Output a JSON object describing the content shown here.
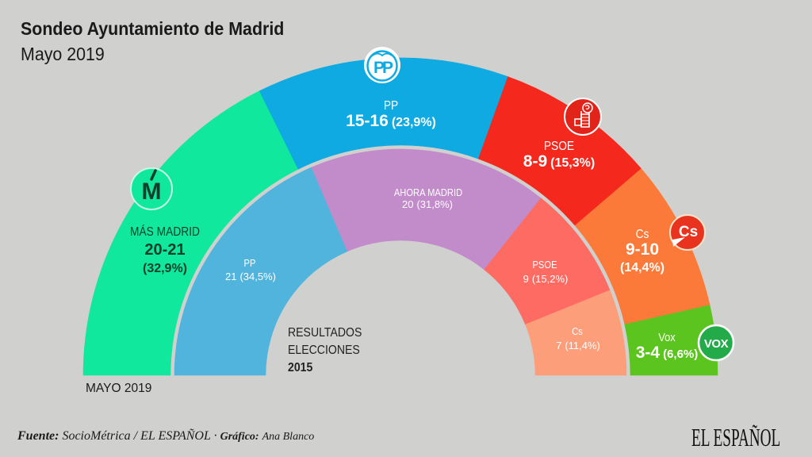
{
  "header": {
    "title": "Sondeo Ayuntamiento de Madrid",
    "subtitle": "Mayo 2019"
  },
  "chart_data": {
    "type": "pie",
    "shape": "semicircle-donut",
    "title": "Sondeo Ayuntamiento de Madrid",
    "subtitle": "Mayo 2019",
    "series": [
      {
        "name": "MAYO 2019",
        "ring": "outer",
        "slices": [
          {
            "party": "MÁS MADRID",
            "seats": "20-21",
            "percent": 32.9,
            "percent_label": "(32,9%)",
            "color": "#10e89e",
            "text_color": "#0f3f2c",
            "logo": "mas-madrid-logo"
          },
          {
            "party": "PP",
            "seats": "15-16",
            "percent": 23.9,
            "percent_label": "(23,9%)",
            "color": "#10aae2",
            "text_color": "#ffffff",
            "logo": "pp-logo"
          },
          {
            "party": "PSOE",
            "seats": "8-9",
            "percent": 15.3,
            "percent_label": "(15,3%)",
            "color": "#f5281e",
            "text_color": "#ffffff",
            "logo": "psoe-logo"
          },
          {
            "party": "Cs",
            "seats": "9-10",
            "percent": 14.4,
            "percent_label": "(14,4%)",
            "color": "#fb7a3a",
            "text_color": "#ffffff",
            "logo": "cs-logo"
          },
          {
            "party": "Vox",
            "seats": "3-4",
            "percent": 6.6,
            "percent_label": "(6,6%)",
            "color": "#5cc41e",
            "text_color": "#ffffff",
            "logo": "vox-logo"
          }
        ]
      },
      {
        "name": "RESULTADOS ELECCIONES 2015",
        "ring": "inner",
        "slices": [
          {
            "party": "PP",
            "seats": "21",
            "percent": 34.5,
            "percent_label": "(34,5%)",
            "color": "#50b4dd",
            "text_color": "#ffffff"
          },
          {
            "party": "AHORA MADRID",
            "seats": "20",
            "percent": 31.8,
            "percent_label": "(31,8%)",
            "color": "#c28bca",
            "text_color": "#ffffff"
          },
          {
            "party": "PSOE",
            "seats": "9",
            "percent": 15.2,
            "percent_label": "(15,2%)",
            "color": "#fd6b62",
            "text_color": "#ffffff"
          },
          {
            "party": "Cs",
            "seats": "7",
            "percent": 11.4,
            "percent_label": "(11,4%)",
            "color": "#fd9e7b",
            "text_color": "#ffffff"
          }
        ]
      }
    ],
    "ring_labels": {
      "outer": "MAYO 2019",
      "inner_line1": "RESULTADOS",
      "inner_line2": "ELECCIONES",
      "inner_line3": "2015"
    },
    "legend": "none"
  },
  "logos": {
    "mas_madrid": "M",
    "pp": "PP",
    "cs": "Cs",
    "vox": "VOX"
  },
  "footer": {
    "source_label": "Fuente:",
    "source_value": "SocioMétrica / EL ESPAÑOL",
    "separator": "·",
    "graphic_label": "Gráfico:",
    "graphic_value": "Ana Blanco",
    "brand": "EL ESPAÑOL"
  },
  "colors": {
    "background": "#d0d0cf",
    "text_dark": "#1c1c1c"
  }
}
